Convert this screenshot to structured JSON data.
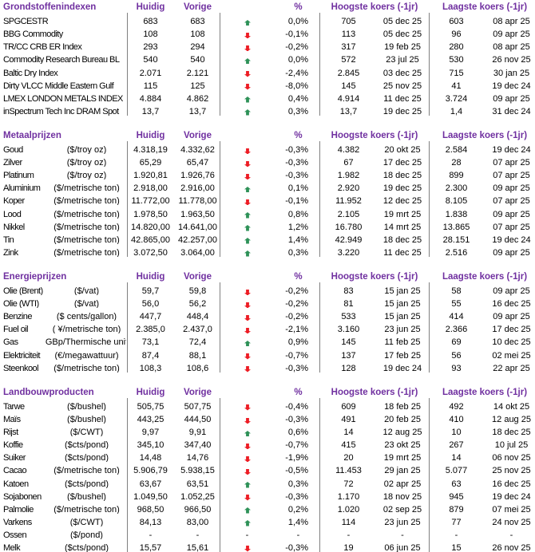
{
  "colors": {
    "header_text": "#7030A0",
    "body_text": "#000000",
    "up_arrow": "#2D9157",
    "down_arrow": "#ED1C24",
    "divider_line": "#808080",
    "background": "#FFFFFF"
  },
  "column_headers": {
    "huidig": "Huidig",
    "vorige": "Vorige",
    "pct": "%",
    "high": "Hoogste koers (-1jr)",
    "low": "Laagste koers (-1jr)"
  },
  "icons": {
    "up": "up-arrow-icon",
    "down": "down-arrow-icon"
  },
  "sections": [
    {
      "title": "Grondstoffenindexen",
      "rows": [
        {
          "name": "SPGCESTR",
          "unit": "",
          "huidig": "683",
          "vorige": "683",
          "trend": "up",
          "pct": "0,0%",
          "high": "705",
          "high_date": "05 dec 25",
          "low": "603",
          "low_date": "08 apr 25"
        },
        {
          "name": "BBG Commodity",
          "unit": "",
          "huidig": "108",
          "vorige": "108",
          "trend": "down",
          "pct": "-0,1%",
          "high": "113",
          "high_date": "05 dec 25",
          "low": "96",
          "low_date": "09 apr 25"
        },
        {
          "name": "TR/CC CRB ER Index",
          "unit": "",
          "huidig": "293",
          "vorige": "294",
          "trend": "down",
          "pct": "-0,2%",
          "high": "317",
          "high_date": "19 feb 25",
          "low": "280",
          "low_date": "08 apr 25"
        },
        {
          "name": "Commodity Research Bureau BL",
          "unit": "",
          "huidig": "540",
          "vorige": "540",
          "trend": "up",
          "pct": "0,0%",
          "high": "572",
          "high_date": "23 jul 25",
          "low": "530",
          "low_date": "26 nov 25"
        },
        {
          "name": "Baltic Dry Index",
          "unit": "",
          "huidig": "2.071",
          "vorige": "2.121",
          "trend": "down",
          "pct": "-2,4%",
          "high": "2.845",
          "high_date": "03 dec 25",
          "low": "715",
          "low_date": "30 jan 25"
        },
        {
          "name": "Dirty VLCC Middle Eastern Gulf",
          "unit": "",
          "huidig": "115",
          "vorige": "125",
          "trend": "down",
          "pct": "-8,0%",
          "high": "145",
          "high_date": "25 nov 25",
          "low": "41",
          "low_date": "19 dec 24"
        },
        {
          "name": "LMEX LONDON METALS INDEX",
          "unit": "",
          "huidig": "4.884",
          "vorige": "4.862",
          "trend": "up",
          "pct": "0,4%",
          "high": "4.914",
          "high_date": "11 dec 25",
          "low": "3.724",
          "low_date": "09 apr 25"
        },
        {
          "name": "inSpectrum Tech Inc DRAM Spot",
          "unit": "",
          "huidig": "13,7",
          "vorige": "13,7",
          "trend": "up",
          "pct": "0,3%",
          "high": "13,7",
          "high_date": "19 dec 25",
          "low": "1,4",
          "low_date": "31 dec 24"
        }
      ]
    },
    {
      "title": "Metaalprijzen",
      "rows": [
        {
          "name": "Goud",
          "unit": "($/troy oz)",
          "huidig": "4.318,19",
          "vorige": "4.332,62",
          "trend": "down",
          "pct": "-0,3%",
          "high": "4.382",
          "high_date": "20 okt 25",
          "low": "2.584",
          "low_date": "19 dec 24"
        },
        {
          "name": "Zilver",
          "unit": "($/troy oz)",
          "huidig": "65,29",
          "vorige": "65,47",
          "trend": "down",
          "pct": "-0,3%",
          "high": "67",
          "high_date": "17 dec 25",
          "low": "28",
          "low_date": "07 apr 25"
        },
        {
          "name": "Platinum",
          "unit": "($/troy oz)",
          "huidig": "1.920,81",
          "vorige": "1.926,76",
          "trend": "down",
          "pct": "-0,3%",
          "high": "1.982",
          "high_date": "18 dec 25",
          "low": "899",
          "low_date": "07 apr 25"
        },
        {
          "name": "Aluminium",
          "unit": "($/metrische ton)",
          "huidig": "2.918,00",
          "vorige": "2.916,00",
          "trend": "up",
          "pct": "0,1%",
          "high": "2.920",
          "high_date": "19 dec 25",
          "low": "2.300",
          "low_date": "09 apr 25"
        },
        {
          "name": "Koper",
          "unit": "($/metrische ton)",
          "huidig": "11.772,00",
          "vorige": "11.778,00",
          "trend": "down",
          "pct": "-0,1%",
          "high": "11.952",
          "high_date": "12 dec 25",
          "low": "8.105",
          "low_date": "07 apr 25"
        },
        {
          "name": "Lood",
          "unit": "($/metrische ton)",
          "huidig": "1.978,50",
          "vorige": "1.963,50",
          "trend": "up",
          "pct": "0,8%",
          "high": "2.105",
          "high_date": "19 mrt 25",
          "low": "1.838",
          "low_date": "09 apr 25"
        },
        {
          "name": "Nikkel",
          "unit": "($/metrische ton)",
          "huidig": "14.820,00",
          "vorige": "14.641,00",
          "trend": "up",
          "pct": "1,2%",
          "high": "16.780",
          "high_date": "14 mrt 25",
          "low": "13.865",
          "low_date": "07 apr 25"
        },
        {
          "name": "Tin",
          "unit": "($/metrische ton)",
          "huidig": "42.865,00",
          "vorige": "42.257,00",
          "trend": "up",
          "pct": "1,4%",
          "high": "42.949",
          "high_date": "18 dec 25",
          "low": "28.151",
          "low_date": "19 dec 24"
        },
        {
          "name": "Zink",
          "unit": "($/metrische ton)",
          "huidig": "3.072,50",
          "vorige": "3.064,00",
          "trend": "up",
          "pct": "0,3%",
          "high": "3.220",
          "high_date": "11 dec 25",
          "low": "2.516",
          "low_date": "09 apr 25"
        }
      ]
    },
    {
      "title": "Energieprijzen",
      "rows": [
        {
          "name": "Olie (Brent)",
          "unit": "($/vat)",
          "huidig": "59,7",
          "vorige": "59,8",
          "trend": "down",
          "pct": "-0,2%",
          "high": "83",
          "high_date": "15 jan 25",
          "low": "58",
          "low_date": "09 apr 25"
        },
        {
          "name": "Olie (WTI)",
          "unit": "($/vat)",
          "huidig": "56,0",
          "vorige": "56,2",
          "trend": "down",
          "pct": "-0,2%",
          "high": "81",
          "high_date": "15 jan 25",
          "low": "55",
          "low_date": "16 dec 25"
        },
        {
          "name": "Benzine",
          "unit": "($ cents/gallon)",
          "huidig": "447,7",
          "vorige": "448,4",
          "trend": "down",
          "pct": "-0,2%",
          "high": "533",
          "high_date": "15 jan 25",
          "low": "414",
          "low_date": "09 apr 25"
        },
        {
          "name": "Fuel oil",
          "unit": "( ¥/metrische ton)",
          "huidig": "2.385,0",
          "vorige": "2.437,0",
          "trend": "down",
          "pct": "-2,1%",
          "high": "3.160",
          "high_date": "23 jun 25",
          "low": "2.366",
          "low_date": "17 dec 25"
        },
        {
          "name": "Gas",
          "unit": "GBp/Thermische unit",
          "huidig": "73,1",
          "vorige": "72,4",
          "trend": "up",
          "pct": "0,9%",
          "high": "145",
          "high_date": "11 feb 25",
          "low": "69",
          "low_date": "10 dec 25"
        },
        {
          "name": "Elektriciteit",
          "unit": "(€/megawattuur)",
          "huidig": "87,4",
          "vorige": "88,1",
          "trend": "down",
          "pct": "-0,7%",
          "high": "137",
          "high_date": "17 feb 25",
          "low": "56",
          "low_date": "02 mei 25"
        },
        {
          "name": "Steenkool",
          "unit": "($/metrische ton)",
          "huidig": "108,3",
          "vorige": "108,6",
          "trend": "down",
          "pct": "-0,3%",
          "high": "128",
          "high_date": "19 dec 24",
          "low": "93",
          "low_date": "22 apr 25"
        }
      ]
    },
    {
      "title": "Landbouwproducten",
      "rows": [
        {
          "name": "Tarwe",
          "unit": "($/bushel)",
          "huidig": "505,75",
          "vorige": "507,75",
          "trend": "down",
          "pct": "-0,4%",
          "high": "609",
          "high_date": "18 feb 25",
          "low": "492",
          "low_date": "14 okt 25"
        },
        {
          "name": "Maïs",
          "unit": "($/bushel)",
          "huidig": "443,25",
          "vorige": "444,50",
          "trend": "down",
          "pct": "-0,3%",
          "high": "491",
          "high_date": "20 feb 25",
          "low": "410",
          "low_date": "12 aug 25"
        },
        {
          "name": "Rijst",
          "unit": "($/CWT)",
          "huidig": "9,97",
          "vorige": "9,91",
          "trend": "up",
          "pct": "0,6%",
          "high": "14",
          "high_date": "12 aug 25",
          "low": "10",
          "low_date": "18 dec 25"
        },
        {
          "name": "Koffie",
          "unit": "($cts/pond)",
          "huidig": "345,10",
          "vorige": "347,40",
          "trend": "down",
          "pct": "-0,7%",
          "high": "415",
          "high_date": "23 okt 25",
          "low": "267",
          "low_date": "10 jul 25"
        },
        {
          "name": "Suiker",
          "unit": "($cts/pond)",
          "huidig": "14,48",
          "vorige": "14,76",
          "trend": "down",
          "pct": "-1,9%",
          "high": "20",
          "high_date": "19 mrt 25",
          "low": "14",
          "low_date": "06 nov 25"
        },
        {
          "name": "Cacao",
          "unit": "($/metrische ton)",
          "huidig": "5.906,79",
          "vorige": "5.938,15",
          "trend": "down",
          "pct": "-0,5%",
          "high": "11.453",
          "high_date": "29 jan 25",
          "low": "5.077",
          "low_date": "25 nov 25"
        },
        {
          "name": "Katoen",
          "unit": "($cts/pond)",
          "huidig": "63,67",
          "vorige": "63,51",
          "trend": "up",
          "pct": "0,3%",
          "high": "72",
          "high_date": "02 apr 25",
          "low": "63",
          "low_date": "16 dec 25"
        },
        {
          "name": "Sojabonen",
          "unit": "($/bushel)",
          "huidig": "1.049,50",
          "vorige": "1.052,25",
          "trend": "down",
          "pct": "-0,3%",
          "high": "1.170",
          "high_date": "18 nov 25",
          "low": "945",
          "low_date": "19 dec 24"
        },
        {
          "name": "Palmolie",
          "unit": "($/metrische ton)",
          "huidig": "968,50",
          "vorige": "966,50",
          "trend": "up",
          "pct": "0,2%",
          "high": "1.020",
          "high_date": "02 sep 25",
          "low": "879",
          "low_date": "07 mei 25"
        },
        {
          "name": "Varkens",
          "unit": "($/CWT)",
          "huidig": "84,13",
          "vorige": "83,00",
          "trend": "up",
          "pct": "1,4%",
          "high": "114",
          "high_date": "23 jun 25",
          "low": "77",
          "low_date": "24 nov 25"
        },
        {
          "name": "Ossen",
          "unit": "($/pond)",
          "huidig": "-",
          "vorige": "-",
          "trend": "none",
          "pct": "-",
          "high": "-",
          "high_date": "-",
          "low": "-",
          "low_date": "-"
        },
        {
          "name": "Melk",
          "unit": "($cts/pond)",
          "huidig": "15,57",
          "vorige": "15,61",
          "trend": "down",
          "pct": "-0,3%",
          "high": "19",
          "high_date": "06 jun 25",
          "low": "15",
          "low_date": "26 nov 25"
        }
      ]
    }
  ]
}
